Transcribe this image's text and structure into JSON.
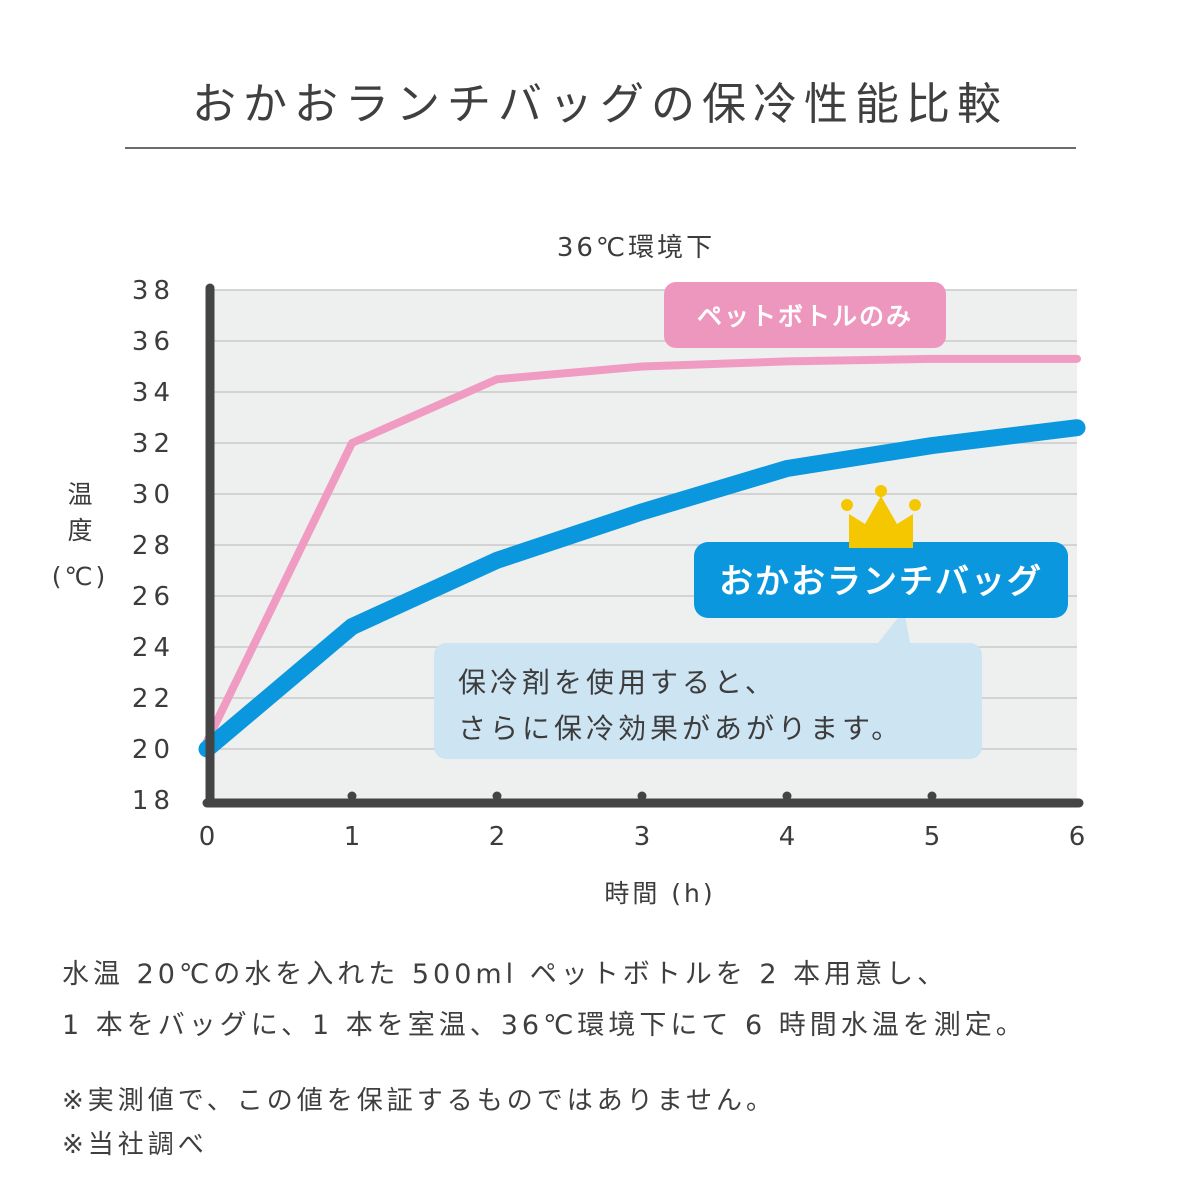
{
  "title": "おかおランチバッグの保冷性能比較",
  "chart_data": {
    "type": "line",
    "title": "36℃環境下",
    "xlabel": "時間 (h)",
    "ylabel_lines": [
      "温",
      "度",
      "(℃)"
    ],
    "x": [
      0,
      1,
      2,
      3,
      4,
      5,
      6
    ],
    "xlim": [
      0,
      6
    ],
    "ylim": [
      18,
      38
    ],
    "yticks": [
      18,
      20,
      22,
      24,
      26,
      28,
      30,
      32,
      34,
      36,
      38
    ],
    "grid": true,
    "series": [
      {
        "name": "ペットボトルのみ",
        "color": "#f09cc2",
        "values": [
          20.3,
          32.0,
          34.5,
          35.0,
          35.2,
          35.3,
          35.3
        ]
      },
      {
        "name": "おかおランチバッグ",
        "color": "#0a97de",
        "values": [
          20.0,
          24.8,
          27.4,
          29.3,
          31.0,
          31.9,
          32.6
        ]
      }
    ],
    "annotation": [
      "保冷剤を使用すると、",
      "さらに保冷効果があがります。"
    ],
    "colors": {
      "plot_bg": "#eef0ef",
      "grid": "#c9c9c9",
      "axis": "#444444",
      "callout_bg": "#cde4f3",
      "crown": "#f4c700"
    },
    "icons": [
      "crown-icon"
    ]
  },
  "notes": {
    "line1": "水温 20℃の水を入れた 500ml ペットボトルを 2 本用意し、",
    "line2": "1 本をバッグに、1 本を室温、36℃環境下にて 6 時間水温を測定。",
    "line3": "※実測値で、この値を保証するものではありません。",
    "line4": "※当社調べ"
  }
}
